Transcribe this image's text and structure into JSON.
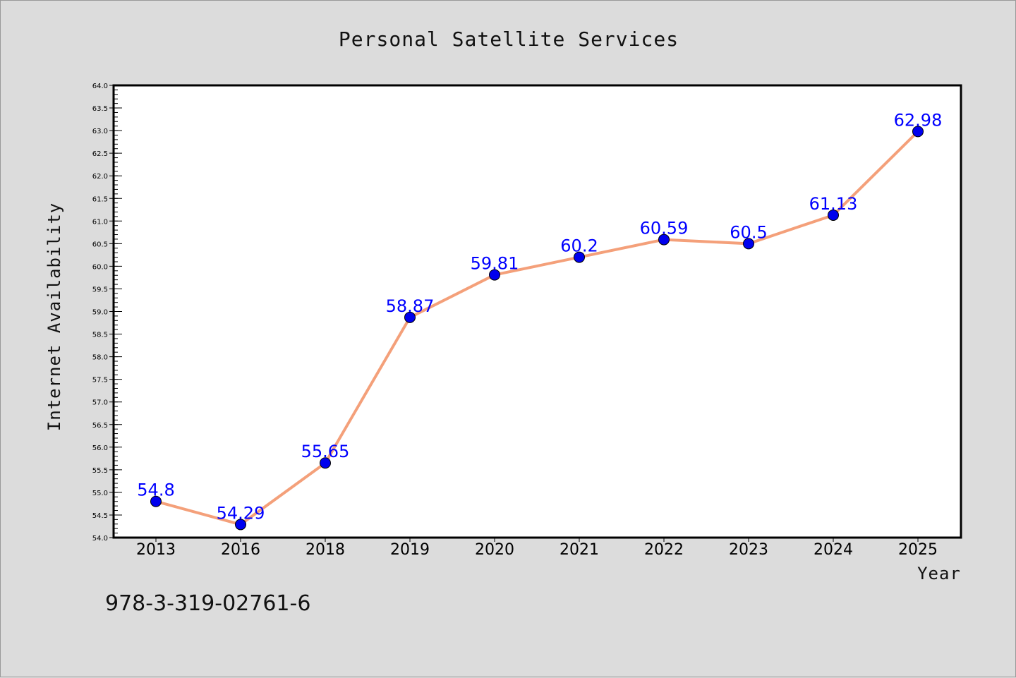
{
  "chart_data": {
    "type": "line",
    "title": "Personal Satellite Services",
    "xlabel": "Year",
    "ylabel": "Internet Availability",
    "categories": [
      "2013",
      "2016",
      "2018",
      "2019",
      "2020",
      "2021",
      "2022",
      "2023",
      "2024",
      "2025"
    ],
    "series": [
      {
        "values": [
          54.8,
          54.29,
          55.65,
          58.87,
          59.81,
          60.2,
          60.59,
          60.5,
          61.13,
          62.98
        ],
        "data_labels": [
          "54.8",
          "54.29",
          "55.65",
          "58.87",
          "59.81",
          "60.2",
          "60.59",
          "60.5",
          "61.13",
          "62.98"
        ],
        "line_color": "#f4a07a",
        "marker_color": "#0000ee",
        "label_color": "#0000ff"
      }
    ],
    "ylim": [
      54.0,
      64.0
    ],
    "yticks": [
      "54.0",
      "54.5",
      "55.0",
      "55.5",
      "56.0",
      "56.5",
      "57.0",
      "57.5",
      "58.0",
      "58.5",
      "59.0",
      "59.5",
      "60.0",
      "60.5",
      "61.0",
      "61.5",
      "62.0",
      "62.5",
      "63.0",
      "63.5",
      "64.0"
    ],
    "grid": false,
    "legend": "none"
  },
  "footnote": "978-3-319-02761-6",
  "colors": {
    "background": "#dcdcdc",
    "plot_area": "#ffffff",
    "line": "#f4a07a",
    "marker": "#0000ee",
    "data_label": "#0000ff"
  }
}
